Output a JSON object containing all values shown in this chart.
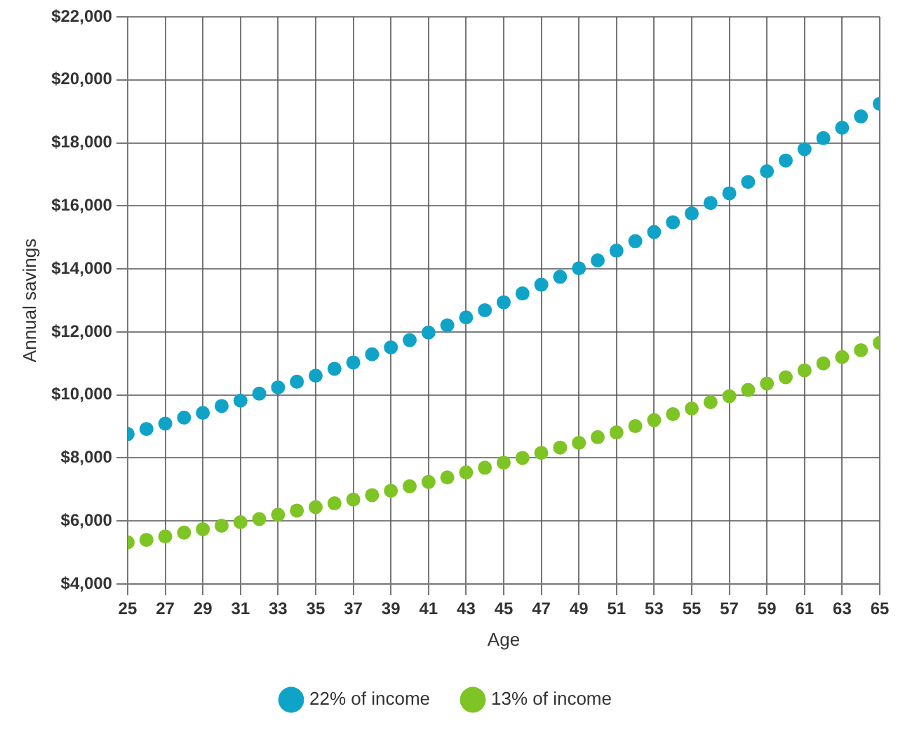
{
  "chart_data": {
    "type": "scatter",
    "xlabel": "Age",
    "ylabel": "Annual savings",
    "x": [
      25,
      26,
      27,
      28,
      29,
      30,
      31,
      32,
      33,
      34,
      35,
      36,
      37,
      38,
      39,
      40,
      41,
      42,
      43,
      44,
      45,
      46,
      47,
      48,
      49,
      50,
      51,
      52,
      53,
      54,
      55,
      56,
      57,
      58,
      59,
      60,
      61,
      62,
      63,
      64,
      65
    ],
    "series": [
      {
        "name": "22% of income",
        "color": "#0fa3c8",
        "values": [
          8760,
          8920,
          9090,
          9280,
          9430,
          9650,
          9820,
          10040,
          10240,
          10420,
          10610,
          10830,
          11030,
          11290,
          11510,
          11740,
          11980,
          12210,
          12460,
          12690,
          12940,
          13220,
          13500,
          13750,
          14020,
          14270,
          14580,
          14880,
          15170,
          15480,
          15760,
          16090,
          16400,
          16760,
          17100,
          17440,
          17800,
          18150,
          18480,
          18840,
          19240
        ]
      },
      {
        "name": "13% of income",
        "color": "#7dc424",
        "values": [
          5320,
          5400,
          5510,
          5630,
          5740,
          5850,
          5960,
          6060,
          6200,
          6330,
          6440,
          6560,
          6680,
          6820,
          6960,
          7100,
          7240,
          7380,
          7540,
          7690,
          7850,
          8000,
          8160,
          8330,
          8480,
          8660,
          8810,
          9010,
          9200,
          9390,
          9570,
          9770,
          9960,
          10160,
          10360,
          10560,
          10780,
          11000,
          11200,
          11420,
          11650
        ]
      }
    ],
    "xlim": [
      25,
      65
    ],
    "xticks": [
      25,
      27,
      29,
      31,
      33,
      35,
      37,
      39,
      41,
      43,
      45,
      47,
      49,
      51,
      53,
      55,
      57,
      59,
      61,
      63,
      65
    ],
    "ylim": [
      4000,
      22000
    ],
    "yticks": [
      {
        "value": 4000,
        "label": "$4,000"
      },
      {
        "value": 6000,
        "label": "$6,000"
      },
      {
        "value": 8000,
        "label": "$8,000"
      },
      {
        "value": 10000,
        "label": "$10,000"
      },
      {
        "value": 12000,
        "label": "$12,000"
      },
      {
        "value": 14000,
        "label": "$14,000"
      },
      {
        "value": 16000,
        "label": "$16,000"
      },
      {
        "value": 18000,
        "label": "$18,000"
      },
      {
        "value": 20000,
        "label": "$20,000"
      },
      {
        "value": 22000,
        "label": "$22,000"
      }
    ],
    "grid": true,
    "legend": "bottom",
    "marker": "circle"
  }
}
